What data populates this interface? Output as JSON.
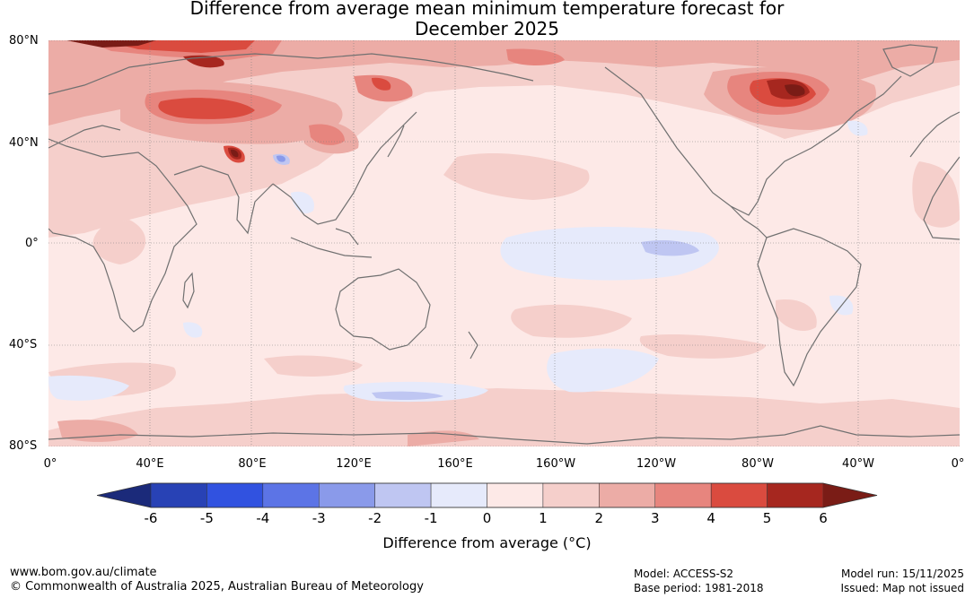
{
  "title": {
    "line1": "Difference from average mean minimum temperature forecast for",
    "line2": "December 2025"
  },
  "map": {
    "lat_labels": [
      "80°N",
      "40°N",
      "0°",
      "40°S",
      "80°S"
    ],
    "lon_labels": [
      "0°",
      "40°E",
      "80°E",
      "120°E",
      "160°E",
      "160°W",
      "120°W",
      "80°W",
      "40°W",
      "0°"
    ],
    "gridline_color": "#7f7f7f",
    "coast_color": "#707070",
    "background_color": "#fde9e7"
  },
  "colorbar": {
    "ticks": [
      "-6",
      "-5",
      "-4",
      "-3",
      "-2",
      "-1",
      "0",
      "1",
      "2",
      "3",
      "4",
      "5",
      "6"
    ],
    "colors": {
      "below": "#1b2a7a",
      "bins": [
        "#2842b5",
        "#3152e0",
        "#5c74e6",
        "#8a9aea",
        "#bfc6f2",
        "#e6eafb",
        "#fde9e7",
        "#f5cfcb",
        "#ecaca6",
        "#e7857e",
        "#da4b3f",
        "#a6271f"
      ],
      "above": "#7a1c16"
    },
    "label": "Difference from average (°C)"
  },
  "footer": {
    "website": "www.bom.gov.au/climate",
    "copyright": "© Commonwealth of Australia 2025, Australian Bureau of Meteorology",
    "model": "Model: ACCESS-S2",
    "base_period": "Base period: 1981-2018",
    "model_run": "Model run: 15/11/2025",
    "issued": "Issued: Map not issued"
  }
}
